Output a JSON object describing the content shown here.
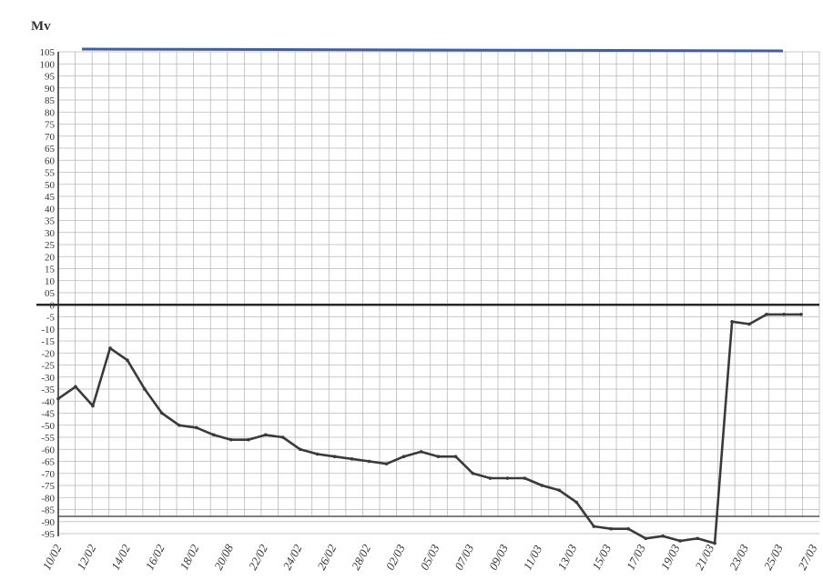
{
  "chart_data": {
    "type": "line",
    "ylabel": "Mv",
    "ylim": [
      -100,
      105
    ],
    "grid": true,
    "y_ticks": [
      "105",
      "100",
      "95",
      "90",
      "85",
      "80",
      "75",
      "70",
      "65",
      "60",
      "55",
      "50",
      "45",
      "40",
      "35",
      "30",
      "25",
      "20",
      "15",
      "10",
      "05",
      "0",
      "-5",
      "-10",
      "-15",
      "-20",
      "-25",
      "-30",
      "-35",
      "-40",
      "-45",
      "-50",
      "-55",
      "-60",
      "-65",
      "-70",
      "-75",
      "-80",
      "-85",
      "-90",
      "-95"
    ],
    "x_labels": [
      "10/02",
      "12/02",
      "14/02",
      "16/02",
      "18/02",
      "20/08",
      "22/02",
      "24/02",
      "26/02",
      "28/02",
      "02/03",
      "05/03",
      "07/03",
      "09/03",
      "11/03",
      "13/03",
      "15/03",
      "17/03",
      "19/03",
      "21/03",
      "23/03",
      "25/03",
      "27/03"
    ],
    "series": [
      {
        "values": [
          -39,
          -34,
          -42,
          -18,
          -23,
          -35,
          -45,
          -50,
          -51,
          -54,
          -56,
          -56,
          -54,
          -55,
          -60,
          -62,
          -63,
          -64,
          -65,
          -66,
          -63,
          -61,
          -63,
          -63,
          -70,
          -72,
          -72,
          -72,
          -75,
          -77,
          -82,
          -92,
          -93,
          -93,
          -97,
          -96,
          -98,
          -97,
          -99,
          -7,
          -8,
          -4,
          -4,
          -4
        ],
        "color": "#3a3a3a"
      }
    ],
    "baseline": 0
  },
  "colors": {
    "grid": "#b9b9b9",
    "axis": "#333333",
    "line": "#3a3a3a",
    "zero_line": "#2a2a2a",
    "top_band": "#3d5ea8"
  }
}
